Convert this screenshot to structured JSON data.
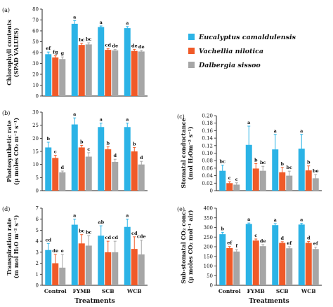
{
  "series": [
    {
      "name": "Eucalyptus camaldulensis",
      "color": "#2bb3e6"
    },
    {
      "name": "Vachellia nilotica",
      "color": "#f05a28"
    },
    {
      "name": "Dalbergia sissoo",
      "color": "#a6a6a6"
    }
  ],
  "x_axis_title": "Treatments",
  "chart_data": [
    {
      "type": "bar",
      "panel": "(a)",
      "ylabel": [
        "Chlorophyll contents",
        "(SPAD VALUES)"
      ],
      "categories": [
        "Control",
        "FYMB",
        "SCB",
        "WCB"
      ],
      "ylim": [
        0,
        80
      ],
      "yticks": [
        0,
        10,
        20,
        30,
        40,
        50,
        60,
        70,
        80
      ],
      "series": [
        {
          "name": "Eucalyptus camaldulensis",
          "values": [
            38.5,
            66.5,
            63.5,
            62.5
          ],
          "err": [
            2,
            3,
            1,
            1.5
          ],
          "letters": [
            "ef",
            "a",
            "a",
            "a"
          ]
        },
        {
          "name": "Vachellia nilotica",
          "values": [
            35.5,
            47,
            42.5,
            41.5
          ],
          "err": [
            1.5,
            1.5,
            1,
            1.5
          ],
          "letters": [
            "fg",
            "bc",
            "cd",
            "de"
          ]
        },
        {
          "name": "Dalbergia sissoo",
          "values": [
            34,
            47.5,
            42,
            41
          ],
          "err": [
            2,
            1.5,
            1,
            1
          ],
          "letters": [
            "g",
            "bc",
            "de",
            "de"
          ]
        }
      ],
      "show_xticklabels": false,
      "show_xtitle": false
    },
    {
      "type": "bar",
      "panel": "(b)",
      "ylabel": [
        "Photosynthetic rate",
        "(μ moles CO₂ m⁻² s⁻¹)"
      ],
      "categories": [
        "Control",
        "FYMB",
        "SCB",
        "WCB"
      ],
      "ylim": [
        0,
        30
      ],
      "yticks": [
        0,
        5,
        10,
        15,
        20,
        25,
        30
      ],
      "series": [
        {
          "name": "Eucalyptus camaldulensis",
          "values": [
            16.5,
            25.3,
            24.3,
            24.3
          ],
          "err": [
            2,
            2.5,
            1.5,
            1.5
          ],
          "letters": [
            "b",
            "a",
            "a",
            "a"
          ]
        },
        {
          "name": "Vachellia nilotica",
          "values": [
            12.5,
            16.5,
            15.8,
            15
          ],
          "err": [
            1,
            0.8,
            1,
            1.5
          ],
          "letters": [
            "c",
            "b",
            "b",
            "b"
          ]
        },
        {
          "name": "Dalbergia sissoo",
          "values": [
            7,
            13,
            11,
            10
          ],
          "err": [
            0.5,
            1.5,
            1,
            1.2
          ],
          "letters": [
            "d",
            "c",
            "d",
            "d"
          ]
        }
      ],
      "show_xticklabels": false,
      "show_xtitle": false
    },
    {
      "type": "bar",
      "panel": "(c)",
      "ylabel": [
        "Stomatal conductance",
        "(mol H₂Om⁻² s⁻¹)"
      ],
      "categories": [
        "Control",
        "FYMB",
        "SCB",
        "WCB"
      ],
      "ylim": [
        0,
        0.2
      ],
      "yticks": [
        0,
        0.02,
        0.04,
        0.06,
        0.08,
        0.1,
        0.12,
        0.14,
        0.16,
        0.18,
        0.2
      ],
      "series": [
        {
          "name": "Eucalyptus camaldulensis",
          "values": [
            0.053,
            0.122,
            0.11,
            0.112
          ],
          "err": [
            0.015,
            0.05,
            0.04,
            0.038
          ],
          "letters": [
            "bc",
            "a",
            "a",
            "a"
          ]
        },
        {
          "name": "Vachellia nilotica",
          "values": [
            0.02,
            0.059,
            0.049,
            0.054
          ],
          "err": [
            0.004,
            0.013,
            0.013,
            0.012
          ],
          "letters": [
            "c",
            "b",
            "b",
            "b"
          ]
        },
        {
          "name": "Dalbergia sissoo",
          "values": [
            0.016,
            0.053,
            0.04,
            0.033
          ],
          "err": [
            0.005,
            0.012,
            0.012,
            0.01
          ],
          "letters": [
            "c",
            "bc",
            "bc",
            "be"
          ]
        }
      ],
      "show_xticklabels": false,
      "show_xtitle": false
    },
    {
      "type": "bar",
      "panel": "(d)",
      "ylabel": [
        "Transpiration rate",
        "(m mol H₂O m⁻² s⁻¹)"
      ],
      "categories": [
        "Control",
        "FYMB",
        "SCB",
        "WCB"
      ],
      "ylim": [
        0,
        7
      ],
      "yticks": [
        0,
        1,
        2,
        3,
        4,
        5,
        6,
        7
      ],
      "series": [
        {
          "name": "Eucalyptus camaldulensis",
          "values": [
            3.2,
            5.5,
            4.5,
            5.3
          ],
          "err": [
            0.6,
            0.5,
            0.9,
            0.7
          ],
          "letters": [
            "cd",
            "a",
            "ab",
            "a"
          ]
        },
        {
          "name": "Vachellia nilotica",
          "values": [
            2,
            3.8,
            3,
            3.3
          ],
          "err": [
            0.8,
            0.8,
            1,
            1.1
          ],
          "letters": [
            "de",
            "bc",
            "cd",
            "cd"
          ]
        },
        {
          "name": "Dalbergia sissoo",
          "values": [
            1.6,
            3.6,
            3,
            2.8
          ],
          "err": [
            1.2,
            0.9,
            1,
            1.3
          ],
          "letters": [
            "e",
            "bc",
            "cd",
            "cde"
          ]
        }
      ],
      "show_xticklabels": true,
      "show_xtitle": true
    },
    {
      "type": "bar",
      "panel": "(e)",
      "ylabel": [
        "Sub-stomatal CO₂ conc.",
        "(μ moles CO₂ mol⁻¹ air)"
      ],
      "categories": [
        "Control",
        "FYMB",
        "SCB",
        "WCB"
      ],
      "ylim": [
        0,
        400
      ],
      "yticks": [
        0,
        50,
        100,
        150,
        200,
        250,
        300,
        350,
        400
      ],
      "series": [
        {
          "name": "Eucalyptus camaldulensis",
          "values": [
            265,
            318,
            312,
            315
          ],
          "err": [
            10,
            5,
            8,
            6
          ],
          "letters": [
            "b",
            "a",
            "a",
            "a"
          ]
        },
        {
          "name": "Vachellia nilotica",
          "values": [
            193,
            232,
            220,
            220
          ],
          "err": [
            8,
            8,
            6,
            7
          ],
          "letters": [
            "ef",
            "c",
            "d",
            "d"
          ]
        },
        {
          "name": "Dalbergia sissoo",
          "values": [
            175,
            203,
            192,
            188
          ],
          "err": [
            10,
            8,
            8,
            10
          ],
          "letters": [
            "f",
            "de",
            "ef",
            "ef"
          ]
        }
      ],
      "show_xticklabels": true,
      "show_xtitle": true
    }
  ]
}
